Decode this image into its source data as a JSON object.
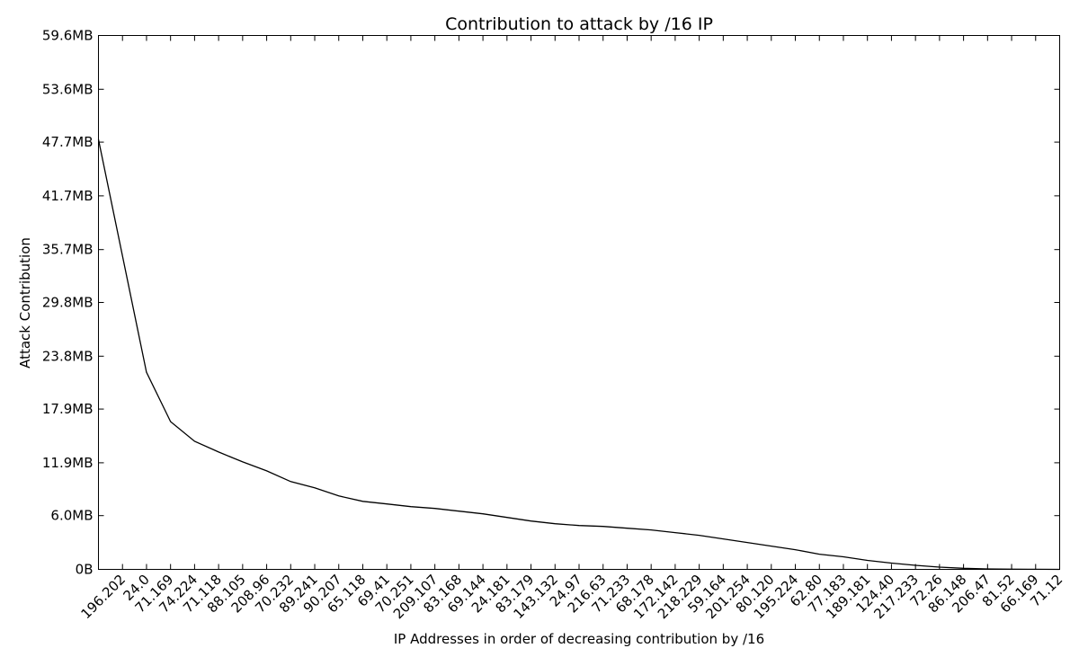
{
  "chart_data": {
    "type": "line",
    "title": "Contribution to attack by /16 IP",
    "xlabel": "IP Addresses in order of decreasing contribution by /16",
    "ylabel": "Attack Contribution",
    "ylim": [
      0,
      59.6
    ],
    "y_unit": "MB",
    "yticks": [
      {
        "value": 0,
        "label": "0B"
      },
      {
        "value": 6.0,
        "label": "6.0MB"
      },
      {
        "value": 11.9,
        "label": "11.9MB"
      },
      {
        "value": 17.9,
        "label": "17.9MB"
      },
      {
        "value": 23.8,
        "label": "23.8MB"
      },
      {
        "value": 29.8,
        "label": "29.8MB"
      },
      {
        "value": 35.7,
        "label": "35.7MB"
      },
      {
        "value": 41.7,
        "label": "41.7MB"
      },
      {
        "value": 47.7,
        "label": "47.7MB"
      },
      {
        "value": 53.6,
        "label": "53.6MB"
      },
      {
        "value": 59.6,
        "label": "59.6MB"
      }
    ],
    "categories": [
      "196.202",
      "24.0",
      "71.169",
      "74.224",
      "71.118",
      "88.105",
      "208.96",
      "70.232",
      "89.241",
      "90.207",
      "65.118",
      "69.41",
      "70.251",
      "209.107",
      "83.168",
      "69.144",
      "24.181",
      "83.179",
      "143.132",
      "24.97",
      "216.63",
      "71.233",
      "68.178",
      "172.142",
      "218.229",
      "59.164",
      "201.254",
      "80.120",
      "195.224",
      "62.80",
      "77.183",
      "189.181",
      "124.40",
      "217.233",
      "72.26",
      "86.148",
      "206.47",
      "81.52",
      "66.169",
      "71.12"
    ],
    "values": [
      48.0,
      22.0,
      16.5,
      14.3,
      13.1,
      12.0,
      11.0,
      9.8,
      9.1,
      8.2,
      7.6,
      7.3,
      7.0,
      6.8,
      6.5,
      6.2,
      5.8,
      5.4,
      5.1,
      4.9,
      4.8,
      4.6,
      4.4,
      4.1,
      3.8,
      3.4,
      3.0,
      2.6,
      2.2,
      1.7,
      1.4,
      1.0,
      0.7,
      0.45,
      0.25,
      0.12,
      0.05,
      0.02,
      0.01,
      0.0
    ],
    "grid": false,
    "legend": "none"
  }
}
